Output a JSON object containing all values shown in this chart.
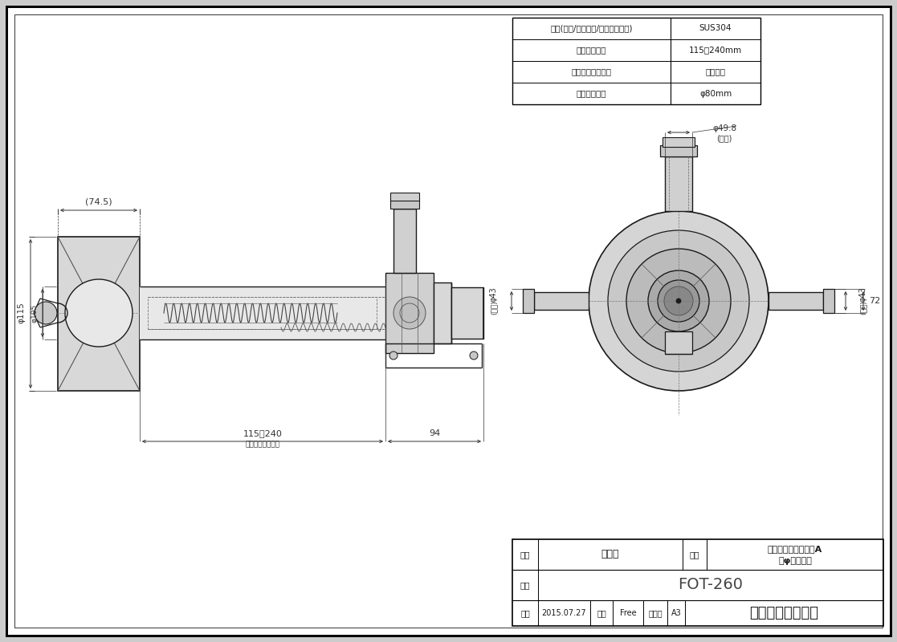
{
  "bg_color": "#ffffff",
  "border_color": "#000000",
  "line_color": "#1a1a1a",
  "spec_table_rows": [
    [
      "材質(本体/スリーブ/チャンバー室)",
      "SUS304"
    ],
    [
      "壁厚調整範囲",
      "115～240mm"
    ],
    [
      "排気吹き出し方向",
      "斜め全周"
    ],
    [
      "壁貫通部穴径",
      "φ80mm"
    ]
  ],
  "title_block": {
    "name_label": "名称",
    "name_value": "外観図",
    "product_label": "品名",
    "product_value1": "標準ウォールトップA",
    "product_value2": "（φ５０用）",
    "model_label": "型式",
    "model_value": "FOT-260",
    "date_label": "作成",
    "date_value": "2015.07.27",
    "scale_label": "尺度",
    "scale_value": "Free",
    "size_label": "サイズ",
    "size_value": "A3",
    "company": "リンナイ株式会社"
  }
}
